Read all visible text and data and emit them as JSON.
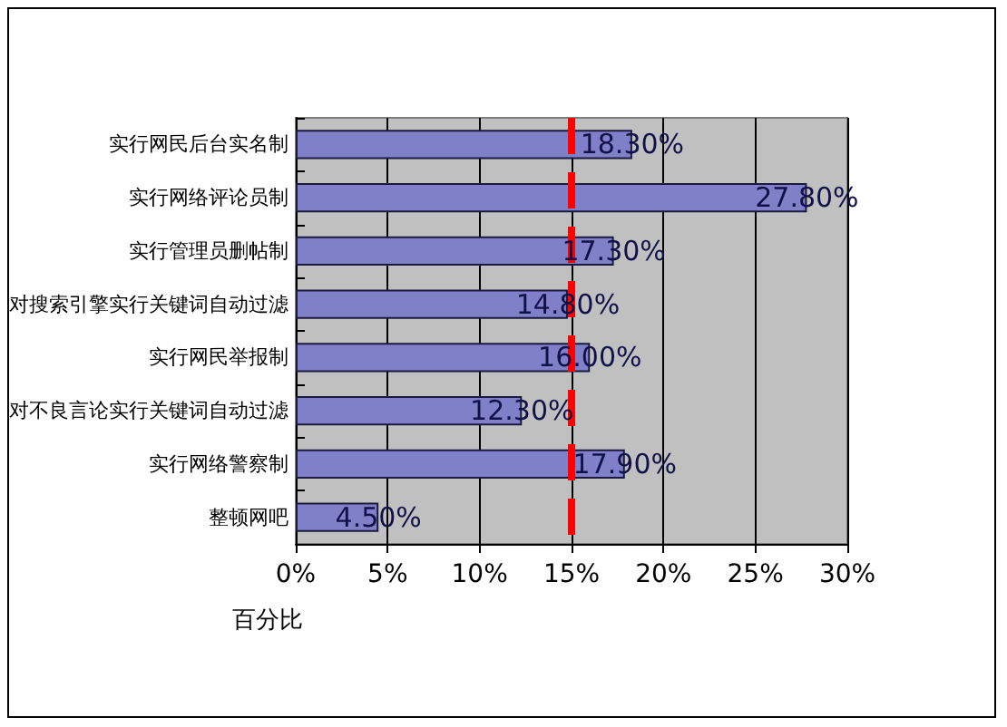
{
  "chart_data": {
    "type": "bar",
    "orientation": "horizontal",
    "categories": [
      "实行网民后台实名制",
      "实行网络评论员制",
      "实行管理员删帖制",
      "对搜索引擎实行关键词自动过滤",
      "实行网民举报制",
      "对不良言论实行关键词自动过滤",
      "实行网络警察制",
      "整顿网吧"
    ],
    "values": [
      18.3,
      27.8,
      17.3,
      14.8,
      16.0,
      12.3,
      17.9,
      4.5
    ],
    "value_labels": [
      "18.30%",
      "27.80%",
      "17.30%",
      "14.80%",
      "16.00%",
      "12.30%",
      "17.90%",
      "4.50%"
    ],
    "color": "#8080c8",
    "xlabel": "百分比",
    "xlim": [
      0,
      30
    ],
    "xticks": [
      {
        "value": 0,
        "label": "0%"
      },
      {
        "value": 5,
        "label": "5%"
      },
      {
        "value": 10,
        "label": "10%"
      },
      {
        "value": 15,
        "label": "15%"
      },
      {
        "value": 20,
        "label": "20%"
      },
      {
        "value": 25,
        "label": "25%"
      },
      {
        "value": 30,
        "label": "30%"
      }
    ],
    "grid": "x",
    "ref_lines": [
      {
        "axis": "x",
        "value": 15,
        "color": "#ff0000",
        "line_style": "dashed"
      }
    ]
  }
}
